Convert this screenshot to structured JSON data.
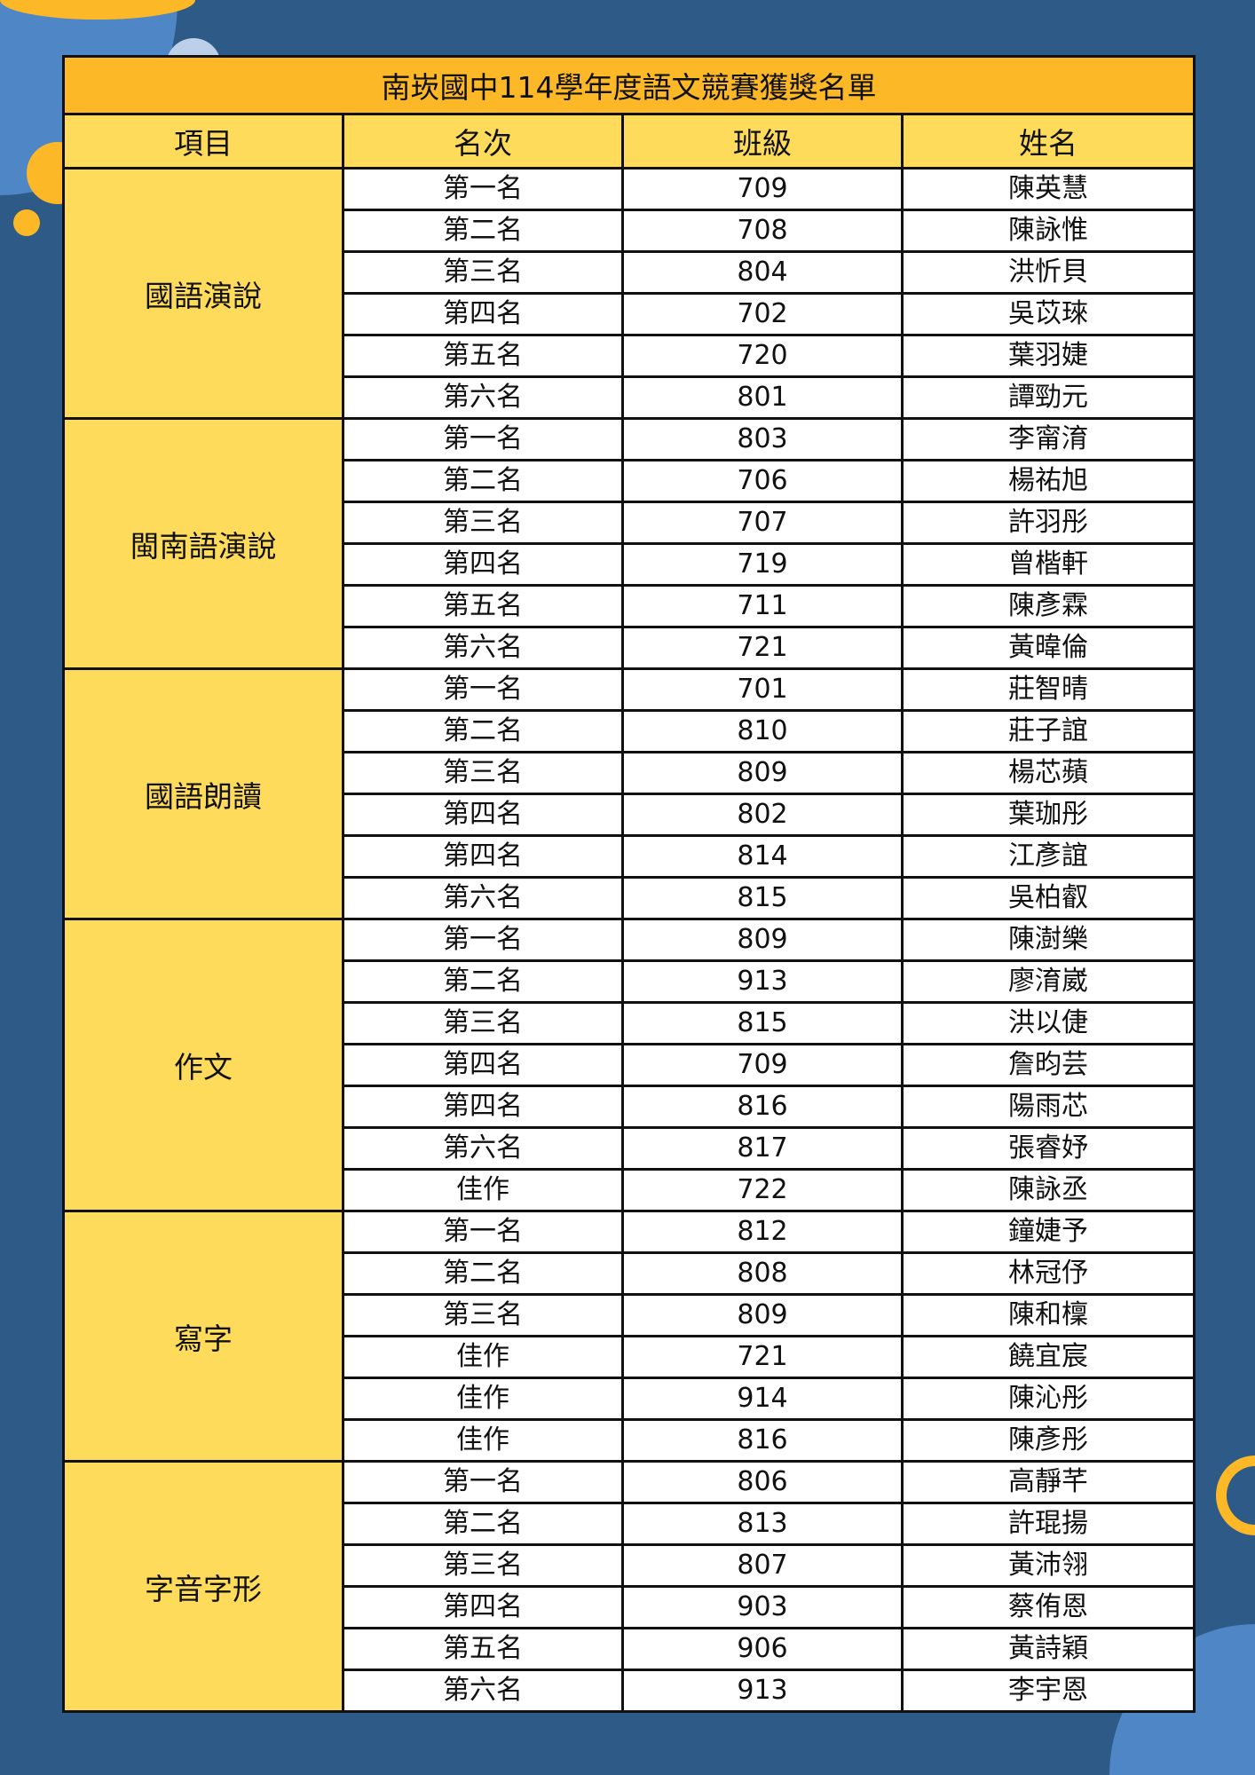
{
  "title": "南崁國中114學年度語文競賽獲獎名單",
  "headers": [
    "項目",
    "名次",
    "班級",
    "姓名"
  ],
  "colors": {
    "background": "#2d5a87",
    "title_bar": "#fdb827",
    "header": "#fedb5b",
    "accent_light": "#4f86c6"
  },
  "categories": [
    {
      "name": "國語演說",
      "rows": [
        [
          "第一名",
          "709",
          "陳英慧"
        ],
        [
          "第二名",
          "708",
          "陳詠惟"
        ],
        [
          "第三名",
          "804",
          "洪忻貝"
        ],
        [
          "第四名",
          "702",
          "吳苡琜"
        ],
        [
          "第五名",
          "720",
          "葉羽婕"
        ],
        [
          "第六名",
          "801",
          "譚勁元"
        ]
      ]
    },
    {
      "name": "閩南語演說",
      "rows": [
        [
          "第一名",
          "803",
          "李甯淯"
        ],
        [
          "第二名",
          "706",
          "楊祐旭"
        ],
        [
          "第三名",
          "707",
          "許羽彤"
        ],
        [
          "第四名",
          "719",
          "曾楷軒"
        ],
        [
          "第五名",
          "711",
          "陳彥霖"
        ],
        [
          "第六名",
          "721",
          "黃暐倫"
        ]
      ]
    },
    {
      "name": "國語朗讀",
      "rows": [
        [
          "第一名",
          "701",
          "莊智晴"
        ],
        [
          "第二名",
          "810",
          "莊子誼"
        ],
        [
          "第三名",
          "809",
          "楊芯蘋"
        ],
        [
          "第四名",
          "802",
          "葉珈彤"
        ],
        [
          "第四名",
          "814",
          "江彥誼"
        ],
        [
          "第六名",
          "815",
          "吳柏叡"
        ]
      ]
    },
    {
      "name": "作文",
      "rows": [
        [
          "第一名",
          "809",
          "陳澍樂"
        ],
        [
          "第二名",
          "913",
          "廖淯崴"
        ],
        [
          "第三名",
          "815",
          "洪以倢"
        ],
        [
          "第四名",
          "709",
          "詹昀芸"
        ],
        [
          "第四名",
          "816",
          "陽雨芯"
        ],
        [
          "第六名",
          "817",
          "張睿妤"
        ],
        [
          "佳作",
          "722",
          "陳詠丞"
        ]
      ]
    },
    {
      "name": "寫字",
      "rows": [
        [
          "第一名",
          "812",
          "鐘婕予"
        ],
        [
          "第二名",
          "808",
          "林冠伃"
        ],
        [
          "第三名",
          "809",
          "陳和檁"
        ],
        [
          "佳作",
          "721",
          "饒宜宸"
        ],
        [
          "佳作",
          "914",
          "陳沁彤"
        ],
        [
          "佳作",
          "816",
          "陳彥彤"
        ]
      ]
    },
    {
      "name": "字音字形",
      "rows": [
        [
          "第一名",
          "806",
          "高靜芊"
        ],
        [
          "第二名",
          "813",
          "許琨揚"
        ],
        [
          "第三名",
          "807",
          "黃沛翎"
        ],
        [
          "第四名",
          "903",
          "蔡侑恩"
        ],
        [
          "第五名",
          "906",
          "黃詩穎"
        ],
        [
          "第六名",
          "913",
          "李宇恩"
        ]
      ]
    }
  ]
}
